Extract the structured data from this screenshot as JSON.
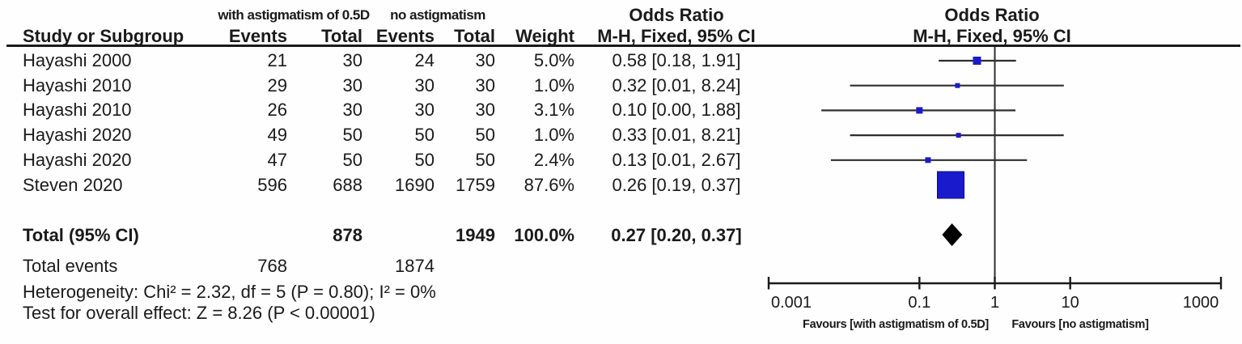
{
  "table": {
    "group1_header": "with astigmatism of 0.5D",
    "group2_header": "no astigmatism",
    "headers": {
      "study": "Study or Subgroup",
      "events1": "Events",
      "total1": "Total",
      "events2": "Events",
      "total2": "Total",
      "weight": "Weight",
      "or_title": "Odds Ratio",
      "or_sub": "M-H, Fixed, 95% CI",
      "plot_title": "Odds Ratio",
      "plot_sub": "M-H, Fixed, 95% CI"
    },
    "rows": [
      {
        "study": "Hayashi 2000",
        "events1": "21",
        "total1": "30",
        "events2": "24",
        "total2": "30",
        "weight": "5.0%",
        "or_text": "0.58 [0.18, 1.91]"
      },
      {
        "study": "Hayashi 2010",
        "events1": "29",
        "total1": "30",
        "events2": "30",
        "total2": "30",
        "weight": "1.0%",
        "or_text": "0.32 [0.01, 8.24]"
      },
      {
        "study": "Hayashi 2010",
        "events1": "26",
        "total1": "30",
        "events2": "30",
        "total2": "30",
        "weight": "3.1%",
        "or_text": "0.10 [0.00, 1.88]"
      },
      {
        "study": "Hayashi 2020",
        "events1": "49",
        "total1": "50",
        "events2": "50",
        "total2": "50",
        "weight": "1.0%",
        "or_text": "0.33 [0.01, 8.21]"
      },
      {
        "study": "Hayashi 2020",
        "events1": "47",
        "total1": "50",
        "events2": "50",
        "total2": "50",
        "weight": "2.4%",
        "or_text": "0.13 [0.01, 2.67]"
      },
      {
        "study": "Steven 2020",
        "events1": "596",
        "total1": "688",
        "events2": "1690",
        "total2": "1759",
        "weight": "87.6%",
        "or_text": "0.26 [0.19, 0.37]"
      }
    ],
    "total_row": {
      "label": "Total (95% CI)",
      "total1": "878",
      "total2": "1949",
      "weight": "100.0%",
      "or_text": "0.27 [0.20, 0.37]"
    },
    "total_events": {
      "label": "Total events",
      "value1": "768",
      "value2": "1874"
    },
    "heterogeneity": "Heterogeneity: Chi² = 2.32, df = 5 (P = 0.80); I² = 0%",
    "overall_effect": "Test for overall effect: Z = 8.26 (P < 0.00001)"
  },
  "chart_data": {
    "type": "forest",
    "x_scale": "log10",
    "axis": {
      "min": 0.001,
      "max": 1000,
      "ticks": [
        {
          "value": 0.001,
          "label": "0.001"
        },
        {
          "value": 0.1,
          "label": "0.1"
        },
        {
          "value": 1,
          "label": "1"
        },
        {
          "value": 10,
          "label": "10"
        },
        {
          "value": 1000,
          "label": "1000"
        }
      ],
      "vline_at": 1
    },
    "favours_left": "Favours [with astigmatism of 0.5D]",
    "favours_right": "Favours [no astigmatism]",
    "marker_color": "#1a1acd",
    "marker_edge_color": "#0a0a80",
    "line_color": "#2e2e2e",
    "diamond_color": "#000000",
    "studies": [
      {
        "study": "Hayashi 2000",
        "or": 0.58,
        "ci_low": 0.18,
        "ci_high": 1.91,
        "weight_pct": 5.0
      },
      {
        "study": "Hayashi 2010",
        "or": 0.32,
        "ci_low": 0.012,
        "ci_high": 8.24,
        "weight_pct": 1.0
      },
      {
        "study": "Hayashi 2010",
        "or": 0.1,
        "ci_low": 0.005,
        "ci_high": 1.88,
        "weight_pct": 3.1
      },
      {
        "study": "Hayashi 2020",
        "or": 0.33,
        "ci_low": 0.012,
        "ci_high": 8.21,
        "weight_pct": 1.0
      },
      {
        "study": "Hayashi 2020",
        "or": 0.13,
        "ci_low": 0.0067,
        "ci_high": 2.67,
        "weight_pct": 2.4
      },
      {
        "study": "Steven 2020",
        "or": 0.26,
        "ci_low": 0.19,
        "ci_high": 0.37,
        "weight_pct": 87.6
      }
    ],
    "total": {
      "or": 0.27,
      "ci_low": 0.2,
      "ci_high": 0.37
    }
  }
}
